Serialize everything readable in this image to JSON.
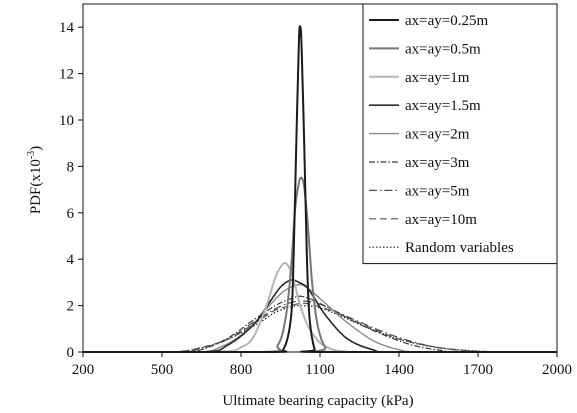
{
  "chart_data": {
    "type": "line",
    "title": "",
    "xlabel": "Ultimate bearing capacity (kPa)",
    "ylabel_main": "PDF(x10",
    "ylabel_exp": "-3",
    "ylabel_close": ")",
    "xlim": [
      200,
      2000
    ],
    "ylim": [
      0,
      15
    ],
    "x_ticks": [
      200,
      500,
      800,
      1100,
      1400,
      1700,
      2000
    ],
    "y_ticks": [
      0,
      2,
      4,
      6,
      8,
      10,
      12,
      14
    ],
    "grid": false,
    "legend_position": "top-right",
    "series": [
      {
        "name": "ax=ay=0.25m",
        "color": "#1a1a1a",
        "dash": "",
        "width": 2.0,
        "x": [
          900,
          960,
          990,
          1000,
          1010,
          1020,
          1025,
          1030,
          1040,
          1050,
          1060,
          1080,
          1100
        ],
        "y": [
          0,
          0.1,
          1.5,
          4.2,
          9.0,
          13.4,
          14.0,
          13.2,
          9.0,
          4.2,
          1.5,
          0.1,
          0
        ]
      },
      {
        "name": "ax=ay=0.5m",
        "color": "#777777",
        "dash": "",
        "width": 2.0,
        "x": [
          880,
          940,
          970,
          990,
          1005,
          1020,
          1030,
          1040,
          1055,
          1070,
          1090,
          1120,
          1160
        ],
        "y": [
          0,
          0.3,
          1.5,
          3.6,
          6.1,
          7.3,
          7.5,
          7.1,
          5.3,
          3.0,
          1.2,
          0.2,
          0
        ]
      },
      {
        "name": "ax=ay=1m",
        "color": "#b5b5b5",
        "dash": "",
        "width": 2.0,
        "x": [
          700,
          800,
          850,
          900,
          930,
          960,
          980,
          1000,
          1020,
          1040,
          1060,
          1100,
          1150,
          1200,
          1260
        ],
        "y": [
          0,
          0.2,
          0.7,
          2.1,
          3.2,
          3.8,
          3.7,
          3.1,
          2.2,
          1.5,
          1.0,
          0.4,
          0.1,
          0.02,
          0
        ]
      },
      {
        "name": "ax=ay=1.5m",
        "color": "#2b2b2b",
        "dash": "",
        "width": 1.6,
        "x": [
          650,
          750,
          850,
          900,
          950,
          990,
          1020,
          1050,
          1080,
          1120,
          1200,
          1300,
          1400
        ],
        "y": [
          0,
          0.3,
          1.2,
          2.0,
          2.8,
          3.1,
          3.0,
          2.8,
          2.3,
          1.6,
          0.6,
          0.1,
          0
        ]
      },
      {
        "name": "ax=ay=2m",
        "color": "#888888",
        "dash": "",
        "width": 1.4,
        "x": [
          620,
          720,
          820,
          900,
          950,
          990,
          1030,
          1070,
          1120,
          1200,
          1300,
          1400,
          1500
        ],
        "y": [
          0,
          0.2,
          0.9,
          1.9,
          2.5,
          2.8,
          2.9,
          2.6,
          2.1,
          1.3,
          0.5,
          0.1,
          0
        ]
      },
      {
        "name": "ax=ay=3m",
        "color": "#3a3a3a",
        "dash": "6,2,1.5,2",
        "width": 1.2,
        "x": [
          560,
          650,
          750,
          850,
          930,
          990,
          1030,
          1080,
          1150,
          1250,
          1350,
          1450,
          1550,
          1650
        ],
        "y": [
          0,
          0.1,
          0.6,
          1.4,
          2.0,
          2.3,
          2.4,
          2.2,
          1.8,
          1.2,
          0.7,
          0.3,
          0.08,
          0
        ]
      },
      {
        "name": "ax=ay=5m",
        "color": "#4d4d4d",
        "dash": "8,3,1.5,3",
        "width": 1.2,
        "x": [
          540,
          650,
          750,
          850,
          920,
          980,
          1030,
          1090,
          1170,
          1270,
          1380,
          1500,
          1620,
          1760
        ],
        "y": [
          0,
          0.15,
          0.55,
          1.3,
          1.8,
          2.1,
          2.2,
          2.1,
          1.7,
          1.2,
          0.7,
          0.3,
          0.08,
          0
        ]
      },
      {
        "name": "ax=ay=10m",
        "color": "#555555",
        "dash": "7,4",
        "width": 1.2,
        "x": [
          530,
          650,
          760,
          860,
          930,
          990,
          1040,
          1100,
          1180,
          1280,
          1390,
          1520,
          1650,
          1800
        ],
        "y": [
          0,
          0.2,
          0.6,
          1.3,
          1.8,
          2.0,
          2.1,
          1.95,
          1.6,
          1.1,
          0.6,
          0.25,
          0.07,
          0
        ]
      },
      {
        "name": "Random variables",
        "color": "#222222",
        "dash": "1.5,2",
        "width": 1.2,
        "x": [
          520,
          640,
          750,
          860,
          930,
          990,
          1040,
          1100,
          1180,
          1280,
          1400,
          1530,
          1670,
          1820
        ],
        "y": [
          0,
          0.15,
          0.55,
          1.2,
          1.7,
          1.95,
          2.0,
          1.9,
          1.55,
          1.05,
          0.55,
          0.22,
          0.06,
          0
        ]
      }
    ]
  }
}
